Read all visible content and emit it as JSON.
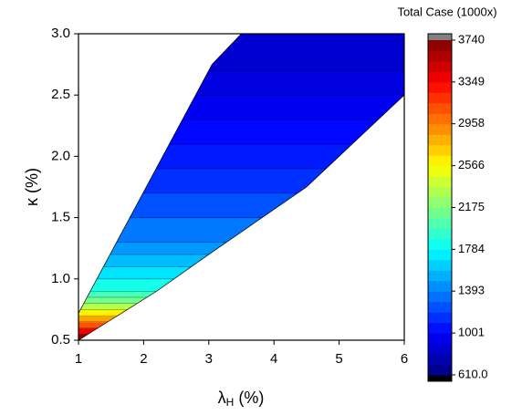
{
  "chart_data": {
    "type": "contour",
    "xlabel_parts": [
      "λ",
      "H",
      " (%)"
    ],
    "ylabel": "κ (%)",
    "xlim": [
      1,
      6
    ],
    "xticks": [
      1,
      2,
      3,
      4,
      5,
      6
    ],
    "ylim": [
      0.5,
      3.0
    ],
    "yticks": [
      0.5,
      {
        "value": 1,
        "label": "1.0"
      },
      1.5,
      {
        "value": 2,
        "label": "2.0"
      },
      2.5,
      {
        "value": 3,
        "label": "3.0"
      }
    ],
    "boundary_x": [
      1,
      1,
      3.05,
      3.5,
      6,
      6,
      4.5,
      3,
      2.2,
      1
    ],
    "boundary_y": [
      0.5,
      0.72,
      2.75,
      3.0,
      3.0,
      2.5,
      1.75,
      1.2,
      0.9,
      0.5
    ],
    "kappa_edges": [
      0.5,
      0.55,
      0.6,
      0.65,
      0.7,
      0.75,
      0.8,
      0.85,
      0.9,
      1.0,
      1.1,
      1.2,
      1.3,
      1.5,
      1.7,
      1.9,
      2.1,
      2.3,
      2.5,
      2.7,
      3.0
    ],
    "values": [
      3700,
      3400,
      3100,
      2850,
      2600,
      2350,
      2150,
      2000,
      1850,
      1700,
      1580,
      1470,
      1370,
      1250,
      1150,
      1080,
      1020,
      960,
      910,
      860
    ],
    "colorbar": {
      "title": "Total Case (1000x)",
      "lim": [
        610,
        3740
      ],
      "ticks": [
        {
          "value": 610,
          "label": "610.0"
        },
        1001,
        1393,
        1784,
        2175,
        2566,
        2958,
        3349,
        3740
      ],
      "over_color": "#808080",
      "under_color": "#000000",
      "colormap": "jet"
    }
  }
}
